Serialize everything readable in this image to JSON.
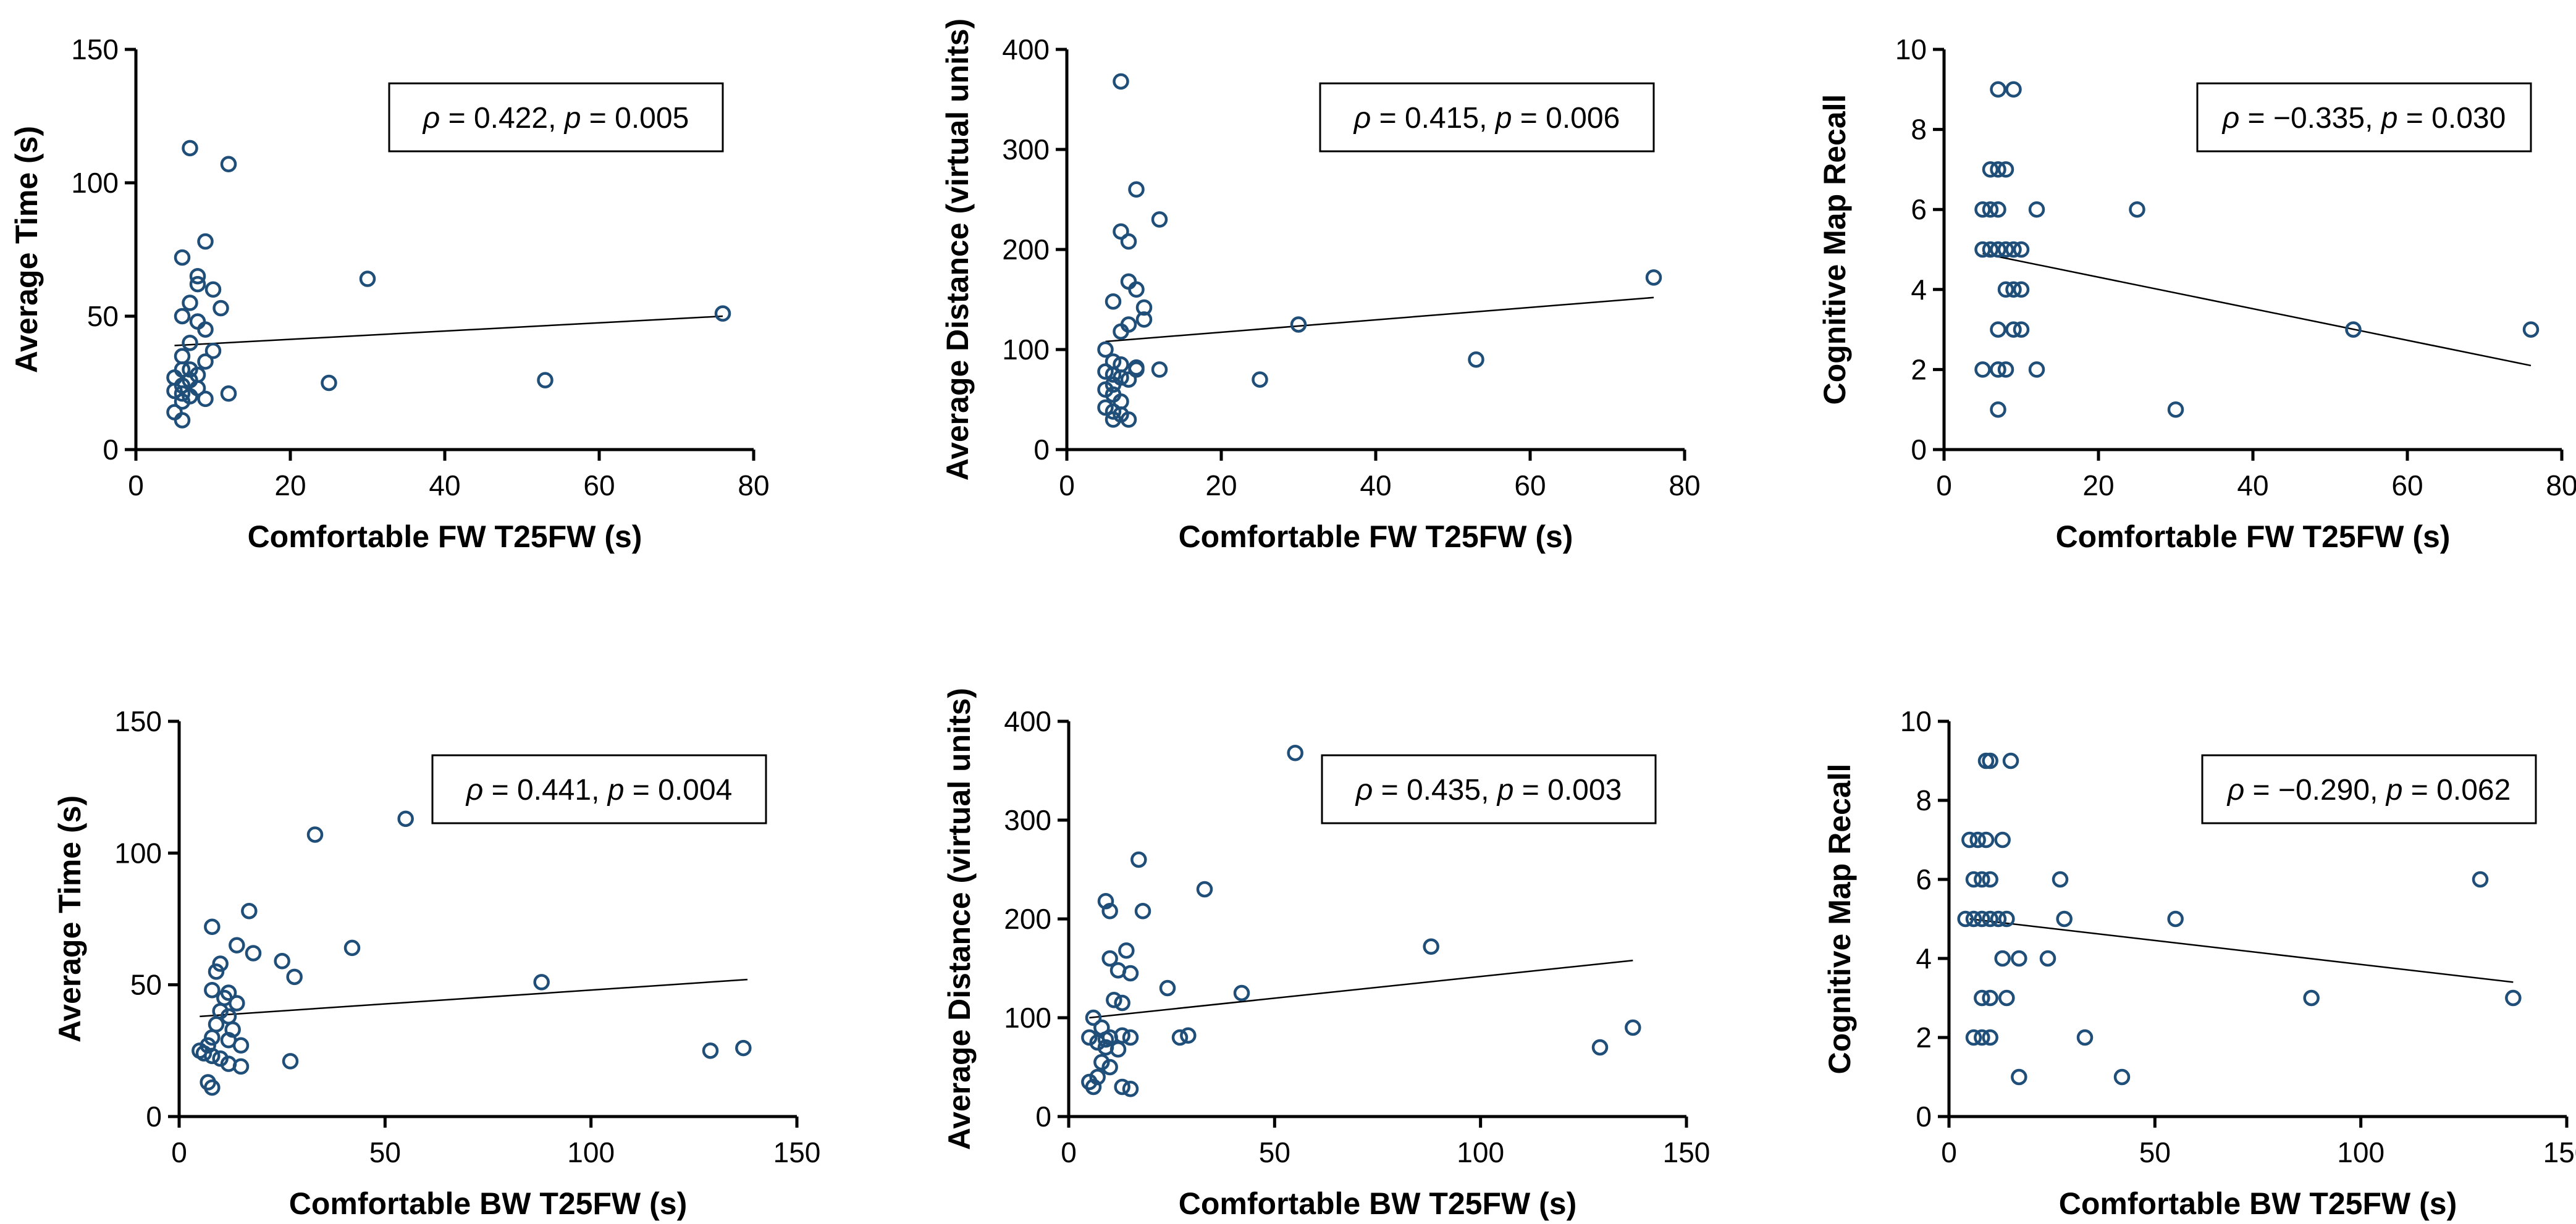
{
  "chart_data": [
    {
      "type": "scatter",
      "xlabel": "Comfortable FW T25FW (s)",
      "ylabel": "Average Time (s)",
      "xlim": [
        0,
        80
      ],
      "ylim": [
        0,
        150
      ],
      "xticks": [
        0,
        20,
        40,
        60,
        80
      ],
      "yticks": [
        0,
        50,
        100,
        150
      ],
      "annotation": {
        "rho": "0.422",
        "p": "0.005",
        "location": "top-right"
      },
      "trendline": [
        [
          5,
          39
        ],
        [
          76,
          50
        ]
      ],
      "points": [
        [
          7,
          113
        ],
        [
          12,
          107
        ],
        [
          6,
          72
        ],
        [
          9,
          78
        ],
        [
          8,
          65
        ],
        [
          10,
          60
        ],
        [
          8,
          62
        ],
        [
          11,
          53
        ],
        [
          30,
          64
        ],
        [
          76,
          51
        ],
        [
          7,
          55
        ],
        [
          6,
          50
        ],
        [
          8,
          48
        ],
        [
          9,
          45
        ],
        [
          7,
          40
        ],
        [
          10,
          37
        ],
        [
          6,
          35
        ],
        [
          9,
          33
        ],
        [
          6,
          30
        ],
        [
          8,
          28
        ],
        [
          5,
          27
        ],
        [
          7,
          26
        ],
        [
          6,
          24
        ],
        [
          8,
          23
        ],
        [
          5,
          22
        ],
        [
          6,
          21
        ],
        [
          7,
          20
        ],
        [
          9,
          19
        ],
        [
          12,
          21
        ],
        [
          25,
          25
        ],
        [
          53,
          26
        ],
        [
          5,
          14
        ],
        [
          6,
          11
        ],
        [
          6,
          18
        ],
        [
          7,
          30
        ]
      ]
    },
    {
      "type": "scatter",
      "xlabel": "Comfortable FW T25FW (s)",
      "ylabel": "Average Distance (virtual units)",
      "xlim": [
        0,
        80
      ],
      "ylim": [
        0,
        400
      ],
      "xticks": [
        0,
        20,
        40,
        60,
        80
      ],
      "yticks": [
        0,
        100,
        200,
        300,
        400
      ],
      "annotation": {
        "rho": "0.415",
        "p": "0.006",
        "location": "top-right"
      },
      "trendline": [
        [
          5,
          108
        ],
        [
          76,
          152
        ]
      ],
      "points": [
        [
          7,
          368
        ],
        [
          9,
          260
        ],
        [
          12,
          230
        ],
        [
          7,
          218
        ],
        [
          8,
          208
        ],
        [
          8,
          168
        ],
        [
          9,
          160
        ],
        [
          6,
          148
        ],
        [
          10,
          142
        ],
        [
          10,
          130
        ],
        [
          8,
          125
        ],
        [
          7,
          118
        ],
        [
          30,
          125
        ],
        [
          76,
          172
        ],
        [
          53,
          90
        ],
        [
          25,
          70
        ],
        [
          5,
          100
        ],
        [
          6,
          88
        ],
        [
          7,
          85
        ],
        [
          9,
          82
        ],
        [
          12,
          80
        ],
        [
          5,
          78
        ],
        [
          6,
          75
        ],
        [
          7,
          72
        ],
        [
          8,
          70
        ],
        [
          6,
          65
        ],
        [
          5,
          60
        ],
        [
          6,
          55
        ],
        [
          7,
          48
        ],
        [
          5,
          42
        ],
        [
          6,
          38
        ],
        [
          7,
          35
        ],
        [
          8,
          30
        ],
        [
          6,
          30
        ],
        [
          9,
          80
        ]
      ]
    },
    {
      "type": "scatter",
      "xlabel": "Comfortable FW T25FW (s)",
      "ylabel": "Cognitive Map Recall",
      "xlim": [
        0,
        80
      ],
      "ylim": [
        0,
        10
      ],
      "xticks": [
        0,
        20,
        40,
        60,
        80
      ],
      "yticks": [
        0,
        2,
        4,
        6,
        8,
        10
      ],
      "annotation": {
        "rho": "−0.335",
        "p": "0.030",
        "location": "top-right"
      },
      "trendline": [
        [
          5,
          4.9
        ],
        [
          76,
          2.1
        ]
      ],
      "points": [
        [
          7,
          9
        ],
        [
          9,
          9
        ],
        [
          6,
          7
        ],
        [
          7,
          7
        ],
        [
          8,
          7
        ],
        [
          6,
          6
        ],
        [
          5,
          6
        ],
        [
          7,
          6
        ],
        [
          12,
          6
        ],
        [
          25,
          6
        ],
        [
          5,
          5
        ],
        [
          6,
          5
        ],
        [
          7,
          5
        ],
        [
          8,
          5
        ],
        [
          9,
          5
        ],
        [
          10,
          5
        ],
        [
          9,
          4
        ],
        [
          10,
          4
        ],
        [
          8,
          4
        ],
        [
          7,
          3
        ],
        [
          9,
          3
        ],
        [
          10,
          3
        ],
        [
          53,
          3
        ],
        [
          76,
          3
        ],
        [
          5,
          2
        ],
        [
          7,
          2
        ],
        [
          8,
          2
        ],
        [
          12,
          2
        ],
        [
          7,
          1
        ],
        [
          30,
          1
        ]
      ]
    },
    {
      "type": "scatter",
      "xlabel": "Comfortable BW T25FW (s)",
      "ylabel": "Average Time (s)",
      "xlim": [
        0,
        150
      ],
      "ylim": [
        0,
        150
      ],
      "xticks": [
        0,
        50,
        100,
        150
      ],
      "yticks": [
        0,
        50,
        100,
        150
      ],
      "annotation": {
        "rho": "0.441",
        "p": "0.004",
        "location": "top-right"
      },
      "trendline": [
        [
          5,
          38
        ],
        [
          138,
          52
        ]
      ],
      "points": [
        [
          55,
          113
        ],
        [
          33,
          107
        ],
        [
          17,
          78
        ],
        [
          8,
          72
        ],
        [
          14,
          65
        ],
        [
          42,
          64
        ],
        [
          18,
          62
        ],
        [
          25,
          59
        ],
        [
          10,
          58
        ],
        [
          9,
          55
        ],
        [
          28,
          53
        ],
        [
          88,
          51
        ],
        [
          8,
          48
        ],
        [
          12,
          47
        ],
        [
          11,
          45
        ],
        [
          14,
          43
        ],
        [
          10,
          40
        ],
        [
          12,
          38
        ],
        [
          9,
          35
        ],
        [
          13,
          33
        ],
        [
          8,
          30
        ],
        [
          12,
          29
        ],
        [
          7,
          27
        ],
        [
          15,
          27
        ],
        [
          5,
          25
        ],
        [
          6,
          24
        ],
        [
          8,
          23
        ],
        [
          10,
          22
        ],
        [
          12,
          20
        ],
        [
          15,
          19
        ],
        [
          27,
          21
        ],
        [
          129,
          25
        ],
        [
          137,
          26
        ],
        [
          7,
          13
        ],
        [
          8,
          11
        ]
      ]
    },
    {
      "type": "scatter",
      "xlabel": "Comfortable BW T25FW (s)",
      "ylabel": "Average Distance (virtual units)",
      "xlim": [
        0,
        150
      ],
      "ylim": [
        0,
        400
      ],
      "xticks": [
        0,
        50,
        100,
        150
      ],
      "yticks": [
        0,
        100,
        200,
        300,
        400
      ],
      "annotation": {
        "rho": "0.435",
        "p": "0.003",
        "location": "top-right"
      },
      "trendline": [
        [
          5,
          100
        ],
        [
          137,
          158
        ]
      ],
      "points": [
        [
          55,
          368
        ],
        [
          17,
          260
        ],
        [
          33,
          230
        ],
        [
          9,
          218
        ],
        [
          10,
          208
        ],
        [
          18,
          208
        ],
        [
          14,
          168
        ],
        [
          88,
          172
        ],
        [
          10,
          160
        ],
        [
          12,
          148
        ],
        [
          15,
          145
        ],
        [
          24,
          130
        ],
        [
          42,
          125
        ],
        [
          11,
          118
        ],
        [
          13,
          115
        ],
        [
          6,
          100
        ],
        [
          8,
          90
        ],
        [
          5,
          80
        ],
        [
          10,
          80
        ],
        [
          13,
          82
        ],
        [
          15,
          80
        ],
        [
          27,
          80
        ],
        [
          29,
          82
        ],
        [
          7,
          75
        ],
        [
          9,
          70
        ],
        [
          12,
          68
        ],
        [
          129,
          70
        ],
        [
          137,
          90
        ],
        [
          8,
          55
        ],
        [
          10,
          50
        ],
        [
          7,
          40
        ],
        [
          5,
          35
        ],
        [
          6,
          30
        ],
        [
          13,
          30
        ],
        [
          15,
          28
        ],
        [
          9,
          78
        ]
      ]
    },
    {
      "type": "scatter",
      "xlabel": "Comfortable BW T25FW (s)",
      "ylabel": "Cognitive Map Recall",
      "xlim": [
        0,
        150
      ],
      "ylim": [
        0,
        10
      ],
      "xticks": [
        0,
        50,
        100,
        150
      ],
      "yticks": [
        0,
        2,
        4,
        6,
        8,
        10
      ],
      "annotation": {
        "rho": "−0.290",
        "p": "0.062",
        "location": "top-right"
      },
      "trendline": [
        [
          5,
          5.0
        ],
        [
          137,
          3.4
        ]
      ],
      "points": [
        [
          9,
          9
        ],
        [
          10,
          9
        ],
        [
          15,
          9
        ],
        [
          5,
          7
        ],
        [
          7,
          7
        ],
        [
          9,
          7
        ],
        [
          13,
          7
        ],
        [
          6,
          6
        ],
        [
          8,
          6
        ],
        [
          10,
          6
        ],
        [
          27,
          6
        ],
        [
          129,
          6
        ],
        [
          4,
          5
        ],
        [
          6,
          5
        ],
        [
          8,
          5
        ],
        [
          10,
          5
        ],
        [
          12,
          5
        ],
        [
          14,
          5
        ],
        [
          28,
          5
        ],
        [
          55,
          5
        ],
        [
          13,
          4
        ],
        [
          17,
          4
        ],
        [
          24,
          4
        ],
        [
          8,
          3
        ],
        [
          10,
          3
        ],
        [
          14,
          3
        ],
        [
          88,
          3
        ],
        [
          137,
          3
        ],
        [
          6,
          2
        ],
        [
          8,
          2
        ],
        [
          10,
          2
        ],
        [
          33,
          2
        ],
        [
          17,
          1
        ],
        [
          42,
          1
        ]
      ]
    }
  ]
}
